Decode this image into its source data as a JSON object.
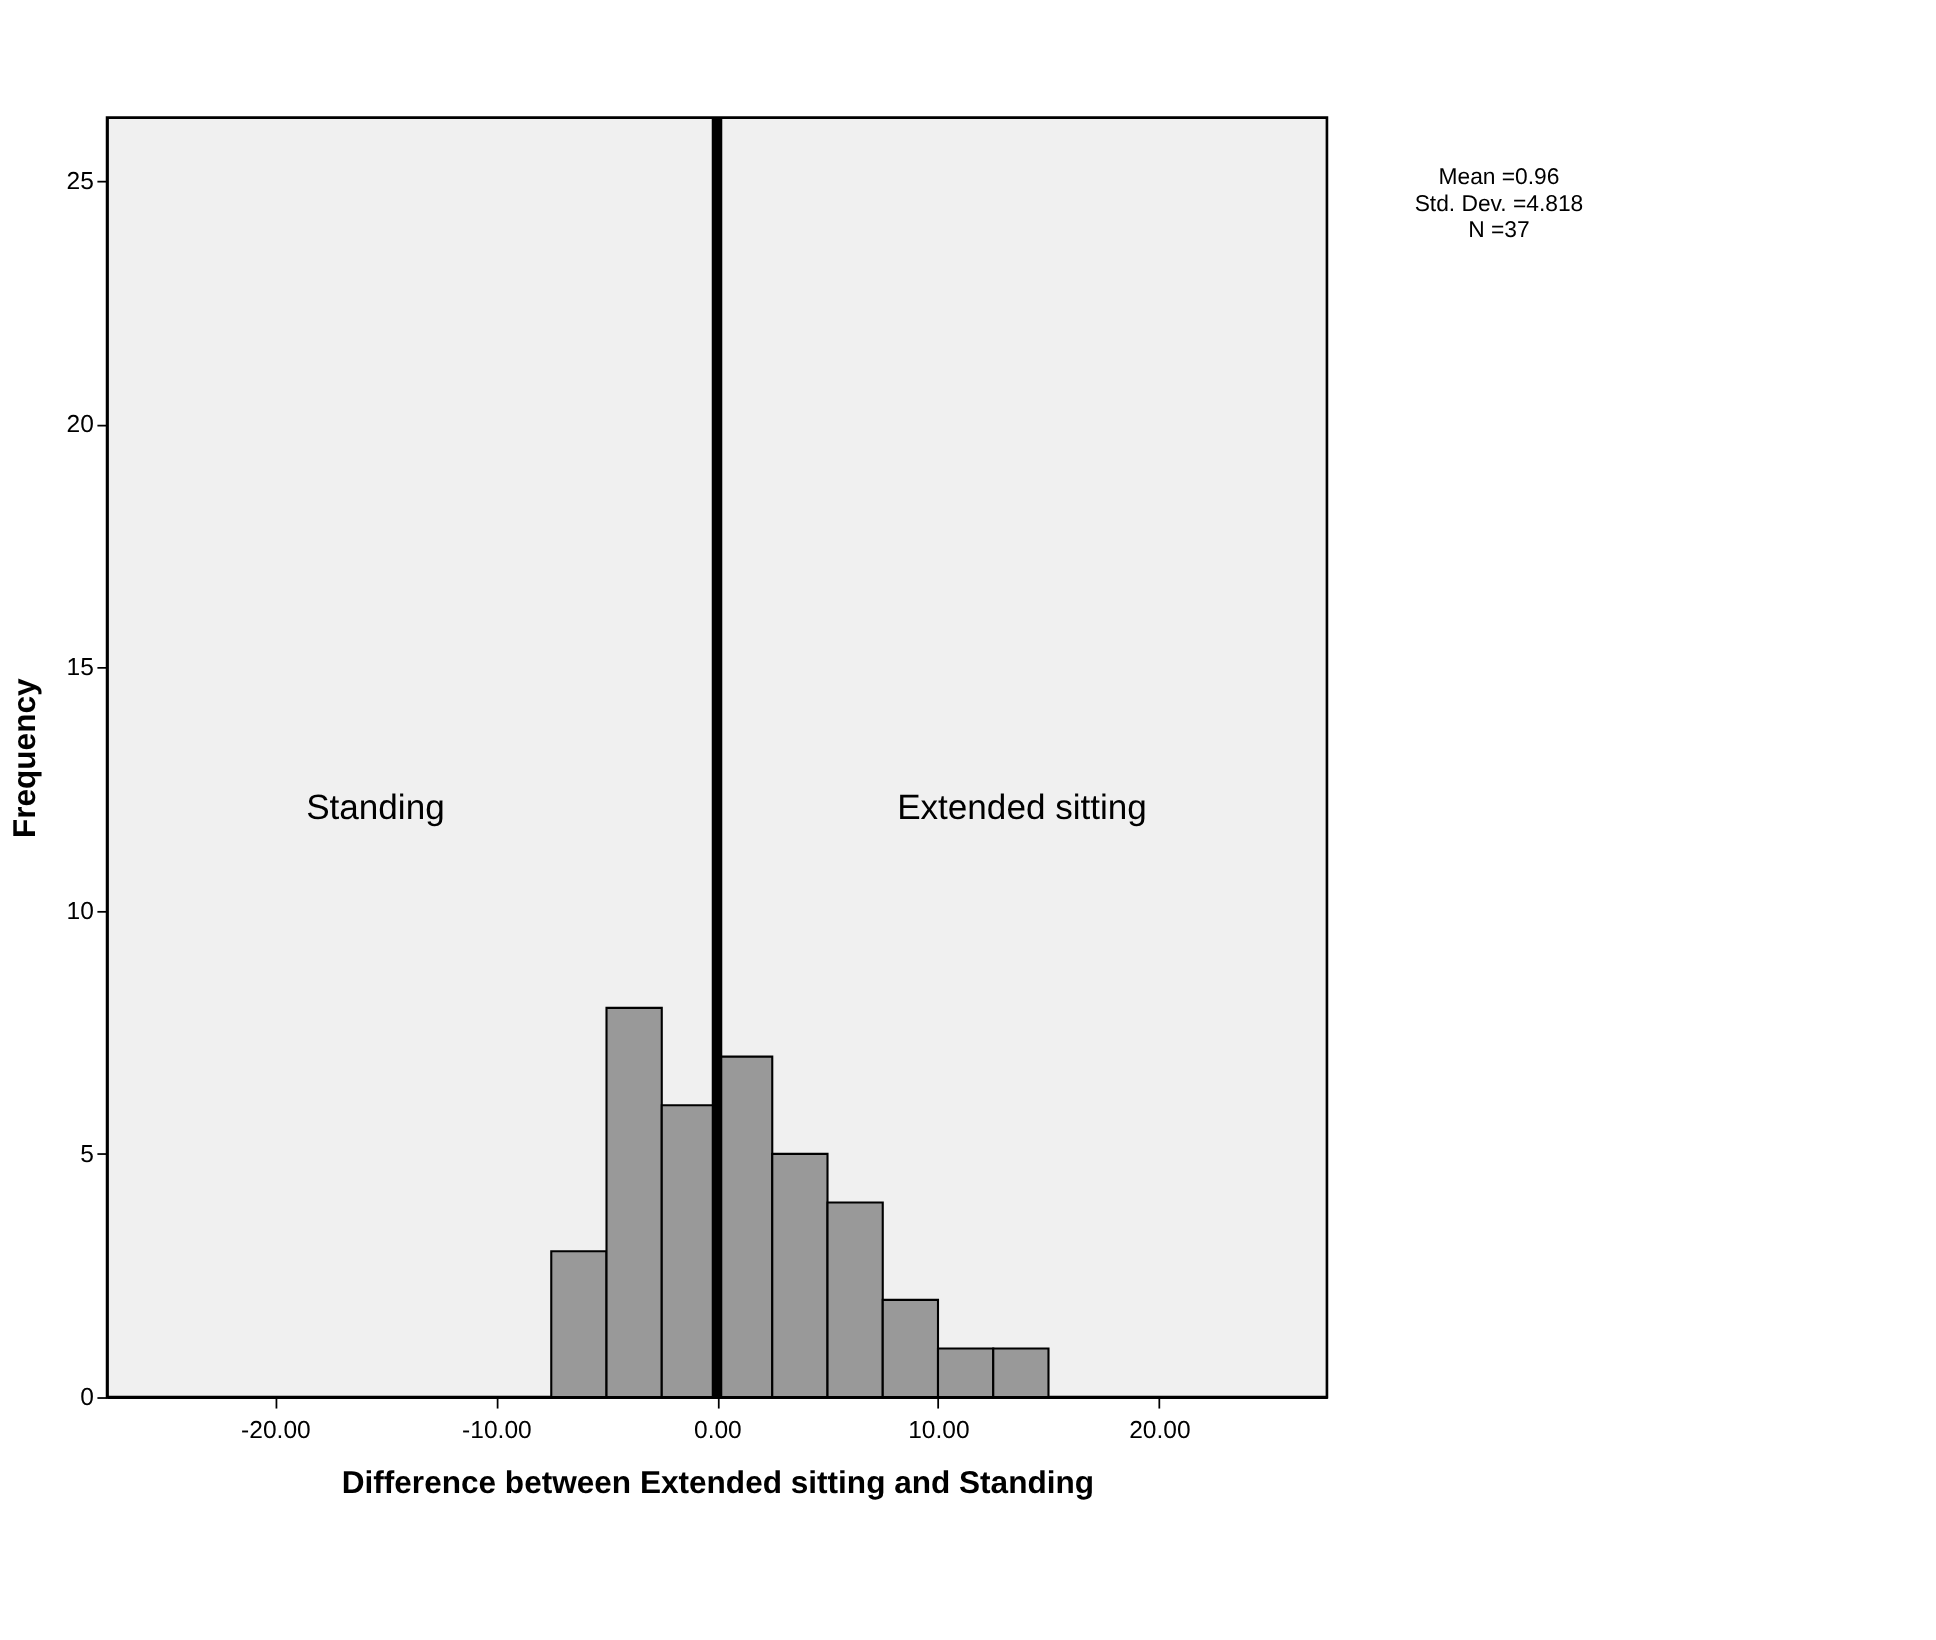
{
  "chart_data": {
    "type": "histogram",
    "xlabel": "Difference between Extended sitting and Standing",
    "ylabel": "Frequency",
    "bins": [
      -7.5,
      -5,
      -2.5,
      0,
      2.5,
      5,
      7.5,
      10,
      12.5,
      15
    ],
    "values": [
      3,
      8,
      6,
      7,
      5,
      4,
      2,
      1,
      1
    ],
    "color": "#999999",
    "xlim": [
      -27.6,
      27.6
    ],
    "xticks": [
      {
        "value": -20,
        "label": "-20.00"
      },
      {
        "value": -10,
        "label": "-10.00"
      },
      {
        "value": 0,
        "label": "0.00"
      },
      {
        "value": 10,
        "label": "10.00"
      },
      {
        "value": 20,
        "label": "20.00"
      }
    ],
    "ylim": [
      0,
      26.3
    ],
    "yticks": [
      0,
      5,
      10,
      15,
      20,
      25
    ],
    "grid": false,
    "ref_lines": [
      {
        "axis": "x",
        "value": 0,
        "color": "#000000"
      }
    ],
    "annotations": [
      "Standing",
      "Extended sitting",
      "Mean =0.96",
      "Std. Dev. =4.818",
      "N =37"
    ]
  }
}
